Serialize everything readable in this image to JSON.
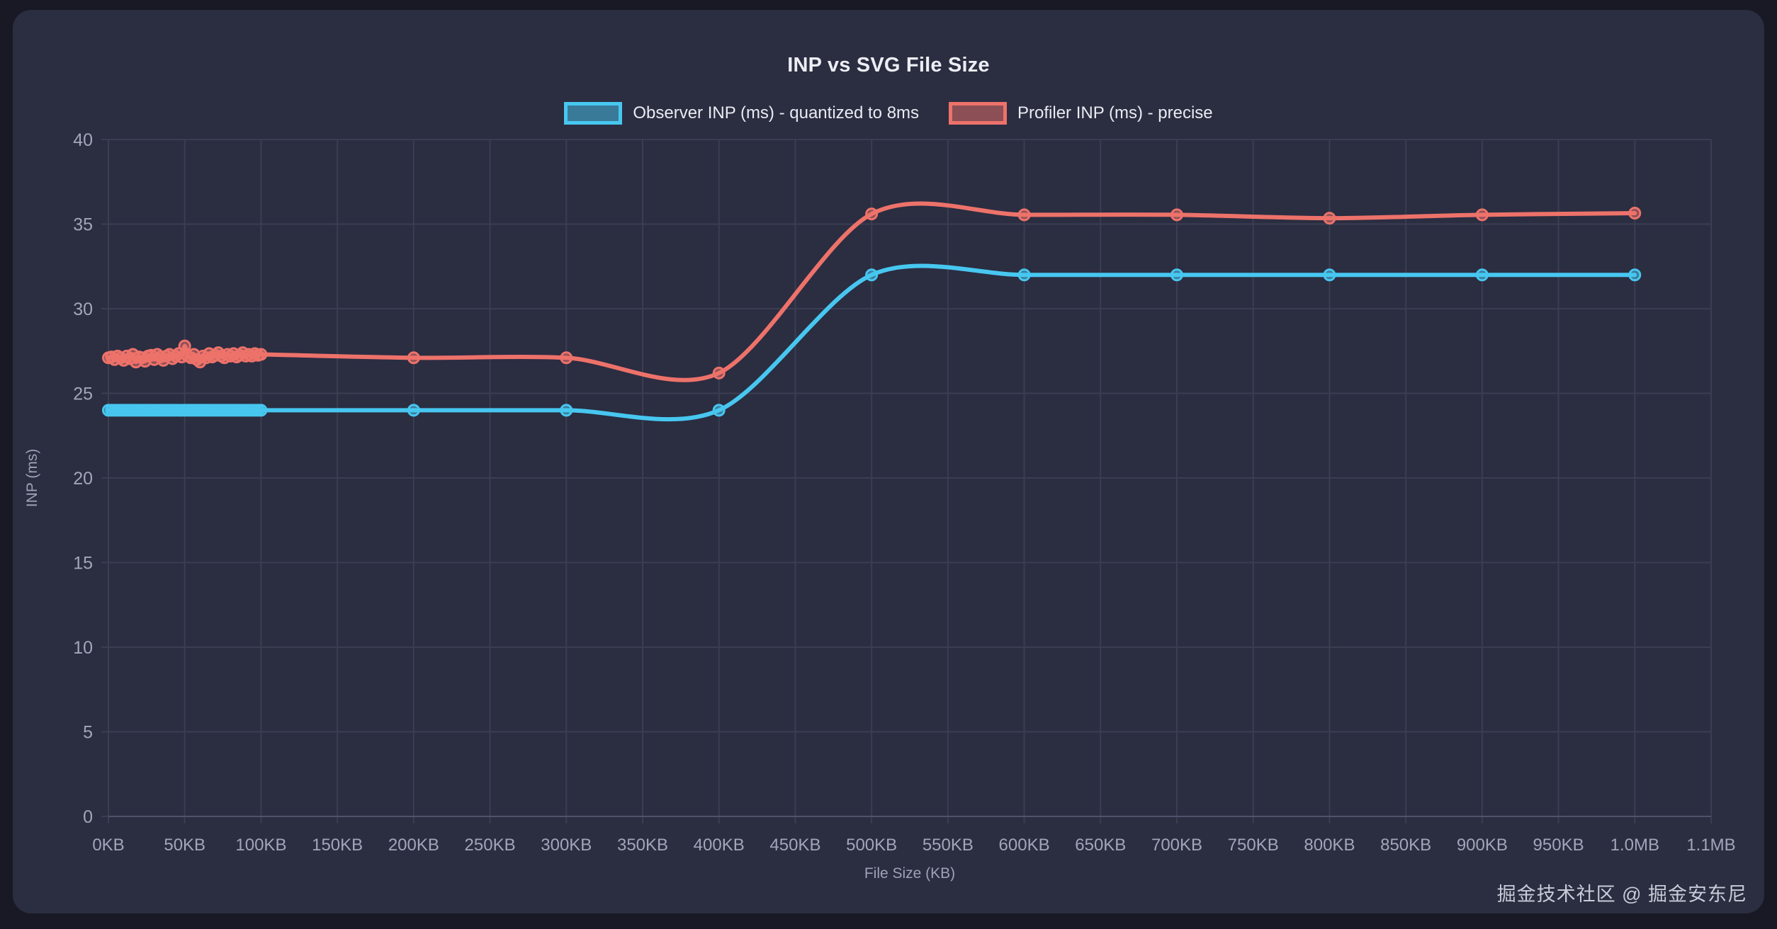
{
  "page": {
    "background": "#181925",
    "panel_background": "#2b2d41",
    "watermark": "掘金技术社区 @ 掘金安东尼"
  },
  "chart_data": {
    "type": "line",
    "title": "INP vs SVG File Size",
    "xlabel": "File Size (KB)",
    "ylabel": "INP (ms)",
    "x_range_kb": [
      0,
      1050
    ],
    "ylim": [
      0,
      40
    ],
    "grid": true,
    "legend_position": "top",
    "colors": {
      "grid": "#3b3d52",
      "axis_line": "#50536b",
      "tick_text": "#a2a6b9",
      "title_text": "#eceef4",
      "legend_text": "#e9ebf2"
    },
    "y_ticks": [
      0,
      5,
      10,
      15,
      20,
      25,
      30,
      35,
      40
    ],
    "x_ticks": [
      {
        "kb": 0,
        "label": "0KB"
      },
      {
        "kb": 50,
        "label": "50KB"
      },
      {
        "kb": 100,
        "label": "100KB"
      },
      {
        "kb": 150,
        "label": "150KB"
      },
      {
        "kb": 200,
        "label": "200KB"
      },
      {
        "kb": 250,
        "label": "250KB"
      },
      {
        "kb": 300,
        "label": "300KB"
      },
      {
        "kb": 350,
        "label": "350KB"
      },
      {
        "kb": 400,
        "label": "400KB"
      },
      {
        "kb": 450,
        "label": "450KB"
      },
      {
        "kb": 500,
        "label": "500KB"
      },
      {
        "kb": 550,
        "label": "550KB"
      },
      {
        "kb": 600,
        "label": "600KB"
      },
      {
        "kb": 650,
        "label": "650KB"
      },
      {
        "kb": 700,
        "label": "700KB"
      },
      {
        "kb": 750,
        "label": "750KB"
      },
      {
        "kb": 800,
        "label": "800KB"
      },
      {
        "kb": 850,
        "label": "850KB"
      },
      {
        "kb": 900,
        "label": "900KB"
      },
      {
        "kb": 950,
        "label": "950KB"
      },
      {
        "kb": 1000,
        "label": "1.0MB"
      },
      {
        "kb": 1050,
        "label": "1.1MB"
      }
    ],
    "series": [
      {
        "name": "Observer INP (ms) - quantized to 8ms",
        "color": "#47c7f0",
        "x": [
          0,
          2,
          4,
          6,
          8,
          10,
          12,
          14,
          16,
          18,
          20,
          22,
          24,
          26,
          28,
          30,
          32,
          34,
          36,
          38,
          40,
          42,
          44,
          46,
          48,
          50,
          52,
          54,
          56,
          58,
          60,
          62,
          64,
          66,
          68,
          70,
          72,
          74,
          76,
          78,
          80,
          82,
          84,
          86,
          88,
          90,
          92,
          94,
          96,
          98,
          100,
          200,
          300,
          400,
          500,
          600,
          700,
          800,
          900,
          1000
        ],
        "y": [
          24,
          24,
          24,
          24,
          24,
          24,
          24,
          24,
          24,
          24,
          24,
          24,
          24,
          24,
          24,
          24,
          24,
          24,
          24,
          24,
          24,
          24,
          24,
          24,
          24,
          24,
          24,
          24,
          24,
          24,
          24,
          24,
          24,
          24,
          24,
          24,
          24,
          24,
          24,
          24,
          24,
          24,
          24,
          24,
          24,
          24,
          24,
          24,
          24,
          24,
          24,
          24,
          24,
          24,
          32,
          32,
          32,
          32,
          32,
          32
        ]
      },
      {
        "name": "Profiler INP (ms) - precise",
        "color": "#ed726a",
        "x": [
          0,
          2,
          4,
          6,
          8,
          10,
          12,
          14,
          16,
          18,
          20,
          22,
          24,
          26,
          28,
          30,
          32,
          34,
          36,
          38,
          40,
          42,
          44,
          46,
          48,
          50,
          52,
          54,
          56,
          58,
          60,
          62,
          64,
          66,
          68,
          70,
          72,
          74,
          76,
          78,
          80,
          82,
          84,
          86,
          88,
          90,
          92,
          94,
          96,
          98,
          100,
          200,
          300,
          400,
          500,
          600,
          700,
          800,
          900,
          1000
        ],
        "y": [
          27.1,
          27.15,
          27.0,
          27.2,
          27.1,
          26.95,
          27.2,
          27.05,
          27.3,
          26.85,
          27.15,
          27.1,
          26.9,
          27.2,
          27.25,
          27.0,
          27.3,
          27.15,
          26.95,
          27.2,
          27.3,
          27.05,
          27.2,
          27.35,
          27.15,
          27.8,
          27.2,
          27.1,
          27.3,
          27.0,
          26.85,
          27.2,
          27.1,
          27.35,
          27.15,
          27.25,
          27.4,
          27.2,
          27.1,
          27.3,
          27.2,
          27.35,
          27.15,
          27.25,
          27.4,
          27.2,
          27.3,
          27.2,
          27.35,
          27.25,
          27.3,
          27.1,
          27.1,
          26.2,
          35.6,
          35.55,
          35.55,
          35.35,
          35.55,
          35.65
        ]
      }
    ]
  }
}
